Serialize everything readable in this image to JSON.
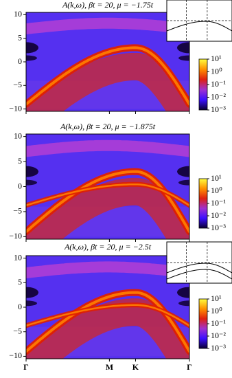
{
  "chart_data": [
    {
      "type": "heatmap",
      "title": "A(k,ω), βt = 20, μ = −1.75t",
      "xlim": [
        0,
        1
      ],
      "ylim": [
        -10.5,
        10.5
      ],
      "yticks": [
        10,
        5,
        0,
        {
          "value": -5,
          "label": "−5"
        },
        {
          "value": -10,
          "label": "−10"
        }
      ],
      "colorbar": {
        "scale": "log",
        "lim": [
          0.001,
          10
        ],
        "ticks": [
          {
            "value": 10,
            "label": "10¹"
          },
          {
            "value": 1,
            "label": "10⁰"
          },
          {
            "value": 0.1,
            "label": "10⁻¹"
          },
          {
            "value": 0.01,
            "label": "10⁻²"
          },
          {
            "value": 0.001,
            "label": "10⁻³"
          }
        ],
        "colors": [
          "#0a0030",
          "#3a10ff",
          "#a030d0",
          "#e02010",
          "#ff9000",
          "#ffff40"
        ]
      }
    },
    {
      "type": "heatmap",
      "title": "A(k,ω), βt = 20, μ = −1.875t",
      "xlim": [
        0,
        1
      ],
      "ylim": [
        -10.5,
        10.5
      ],
      "yticks": [
        10,
        5,
        0,
        {
          "value": -5,
          "label": "−5"
        },
        {
          "value": -10,
          "label": "−10"
        }
      ],
      "colorbar": {
        "scale": "log",
        "lim": [
          0.001,
          10
        ],
        "ticks": [
          {
            "value": 10,
            "label": "10¹"
          },
          {
            "value": 1,
            "label": "10⁰"
          },
          {
            "value": 0.1,
            "label": "10⁻¹"
          },
          {
            "value": 0.01,
            "label": "10⁻²"
          },
          {
            "value": 0.001,
            "label": "10⁻³"
          }
        ],
        "colors": [
          "#0a0030",
          "#3a10ff",
          "#a030d0",
          "#e02010",
          "#ff9000",
          "#ffff40"
        ]
      }
    },
    {
      "type": "heatmap",
      "title": "A(k,ω), βt = 20, μ = −2.5t",
      "xlim": [
        0,
        1
      ],
      "ylim": [
        -10.5,
        10.5
      ],
      "xticks": [
        {
          "value": 0,
          "label": "Γ"
        },
        {
          "value": 0.51,
          "label": "M"
        },
        {
          "value": 0.67,
          "label": "K"
        },
        {
          "value": 1,
          "label": "Γ"
        }
      ],
      "yticks": [
        10,
        5,
        0,
        {
          "value": -5,
          "label": "−5"
        },
        {
          "value": -10,
          "label": "−10"
        }
      ],
      "colorbar": {
        "scale": "log",
        "lim": [
          0.001,
          10
        ],
        "ticks": [
          {
            "value": 10,
            "label": "10¹"
          },
          {
            "value": 1,
            "label": "10⁰"
          },
          {
            "value": 0.1,
            "label": "10⁻¹"
          },
          {
            "value": 0.01,
            "label": "10⁻²"
          },
          {
            "value": 0.001,
            "label": "10⁻³"
          }
        ],
        "colors": [
          "#0a0030",
          "#3a10ff",
          "#a030d0",
          "#e02010",
          "#ff9000",
          "#ffff40"
        ]
      }
    }
  ]
}
